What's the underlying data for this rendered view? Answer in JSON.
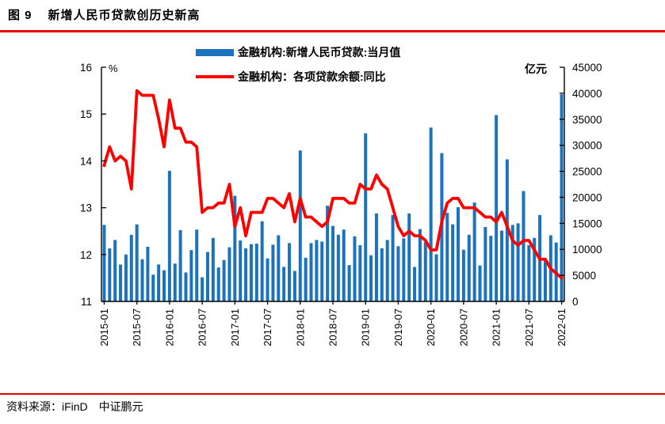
{
  "figure": {
    "title_prefix": "图 9",
    "title_text": "新增人民币贷款创历史新高",
    "source": "资料来源：iFinD　中证鹏元"
  },
  "legend": [
    {
      "label": "金融机构:新增人民币贷款:当月值",
      "type": "bar",
      "color": "#1b73bc"
    },
    {
      "label": "金融机构：各项贷款余额:同比",
      "type": "line",
      "color": "#fe0000"
    }
  ],
  "colors": {
    "bar_blue": "#1b73bc",
    "line_red": "#fe0000",
    "rule_red": "#e60000",
    "axis_black": "#000000"
  },
  "chart_data": {
    "type": "bar+line combo, dual axis",
    "x_start": "2015-01",
    "x_end": "2022-01",
    "x_freq": "monthly",
    "x_tick_labels": [
      "2015-01",
      "2015-07",
      "2016-01",
      "2016-07",
      "2017-01",
      "2017-07",
      "2018-01",
      "2018-07",
      "2019-01",
      "2019-07",
      "2020-01",
      "2020-07",
      "2021-01",
      "2021-07",
      "2022-01"
    ],
    "left_axis": {
      "label": "%",
      "min": 11,
      "max": 16,
      "ticks": [
        11,
        12,
        13,
        14,
        15,
        16
      ]
    },
    "right_axis": {
      "label": "亿元",
      "min": 0,
      "max": 45000,
      "ticks": [
        0,
        5000,
        10000,
        15000,
        20000,
        25000,
        30000,
        35000,
        40000,
        45000
      ]
    },
    "grid": false,
    "legend_position": "top-center",
    "series": [
      {
        "name": "金融机构:新增人民币贷款:当月值",
        "type": "bar",
        "axis": "right",
        "unit": "亿元",
        "color": "#1b73bc",
        "values": [
          14700,
          10200,
          11800,
          7079,
          9008,
          12791,
          14800,
          8096,
          10500,
          5136,
          7089,
          5978,
          25100,
          7266,
          13700,
          5556,
          9855,
          13800,
          4636,
          9487,
          12200,
          6513,
          7946,
          10400,
          20300,
          11700,
          10200,
          11000,
          11100,
          15400,
          8255,
          10900,
          12700,
          6632,
          11200,
          5844,
          29000,
          8393,
          11200,
          11800,
          11500,
          18400,
          14500,
          12800,
          13800,
          6970,
          12500,
          10800,
          32300,
          8858,
          16900,
          10200,
          11800,
          16600,
          10600,
          12100,
          16900,
          6613,
          13900,
          11400,
          33400,
          9057,
          28500,
          17000,
          14800,
          18100,
          9927,
          12800,
          19000,
          6898,
          14300,
          12600,
          35800,
          13600,
          27300,
          14700,
          15000,
          21200,
          10800,
          12200,
          16600,
          8262,
          12700,
          11300,
          39800
        ]
      },
      {
        "name": "金融机构：各项贷款余额:同比",
        "type": "line",
        "axis": "left",
        "unit": "%",
        "color": "#fe0000",
        "values": [
          13.9,
          14.3,
          14.0,
          14.1,
          14.0,
          13.4,
          15.5,
          15.4,
          15.4,
          15.4,
          14.9,
          14.3,
          15.3,
          14.7,
          14.7,
          14.4,
          14.4,
          14.3,
          12.9,
          13.0,
          13.0,
          13.1,
          13.1,
          13.5,
          12.6,
          13.0,
          12.4,
          12.9,
          12.9,
          12.9,
          13.2,
          13.2,
          13.1,
          13.0,
          13.3,
          12.7,
          13.2,
          12.8,
          12.8,
          12.7,
          12.6,
          12.7,
          13.2,
          13.2,
          13.2,
          13.1,
          13.1,
          13.5,
          13.4,
          13.4,
          13.7,
          13.5,
          13.4,
          13.0,
          12.6,
          12.4,
          12.5,
          12.4,
          12.4,
          12.3,
          12.1,
          12.1,
          12.7,
          13.1,
          13.2,
          13.2,
          13.0,
          13.0,
          13.0,
          12.9,
          12.8,
          12.8,
          12.7,
          12.9,
          12.6,
          12.3,
          12.2,
          12.3,
          12.3,
          12.1,
          11.9,
          11.9,
          11.7,
          11.6,
          11.5
        ]
      }
    ]
  }
}
